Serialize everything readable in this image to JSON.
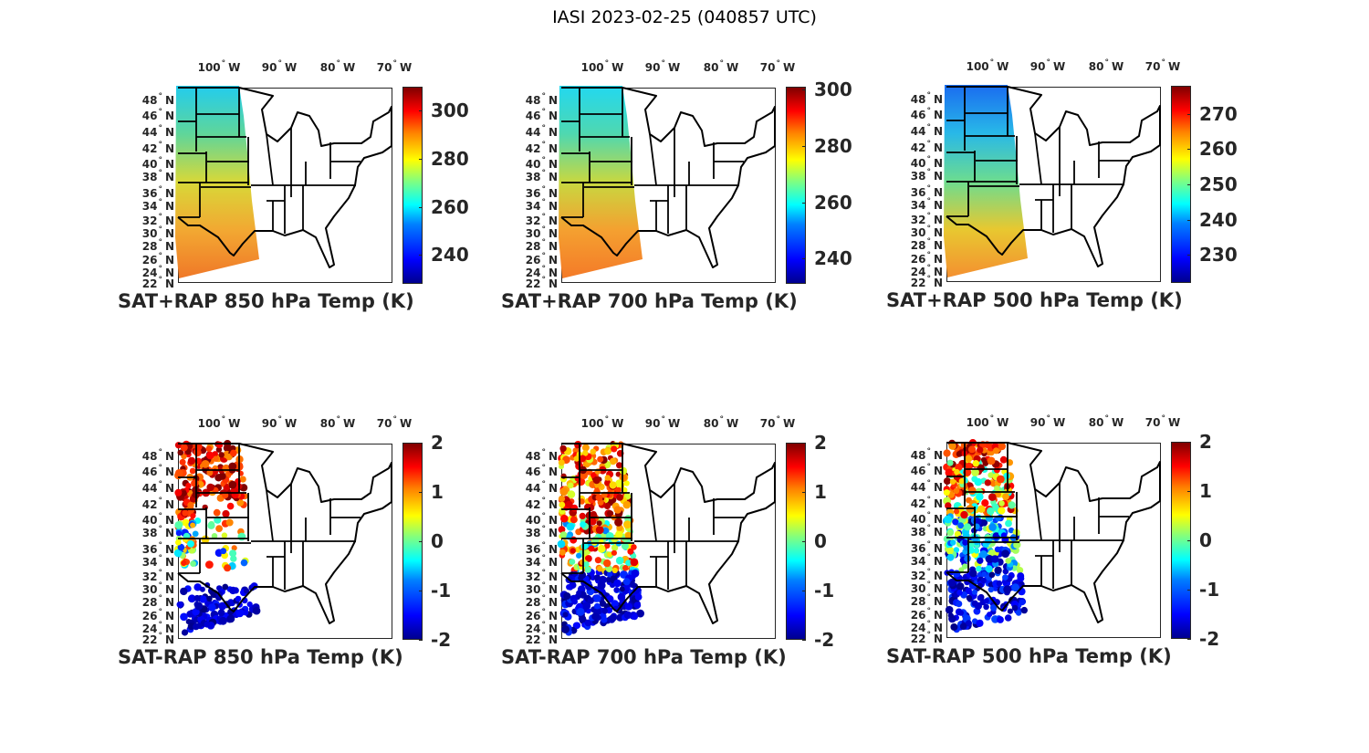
{
  "title": "IASI 2023-02-25 (040857 UTC)",
  "lon_labels": [
    "100",
    "90",
    "80",
    "70"
  ],
  "lon_suffix": "W",
  "lat_labels": [
    "48",
    "46",
    "44",
    "42",
    "40",
    "38",
    "36",
    "34",
    "32",
    "30",
    "28",
    "26",
    "24",
    "22"
  ],
  "lat_suffix": "N",
  "degree_symbol": "°",
  "colormap": "jet",
  "panels": [
    {
      "title": "SAT+RAP 850 hPa Temp (K)",
      "kind": "field",
      "range": [
        228,
        310
      ],
      "ticks": [
        "240",
        "260",
        "280",
        "300"
      ],
      "field_colors": [
        "#22ccee",
        "#5fd69a",
        "#d8d838",
        "#f2a832",
        "#f07828"
      ]
    },
    {
      "title": "SAT+RAP 700 hPa Temp (K)",
      "kind": "field",
      "range": [
        231,
        301
      ],
      "ticks": [
        "240",
        "260",
        "280",
        "300"
      ],
      "field_colors": [
        "#22d8f0",
        "#4fd8b0",
        "#c8d840",
        "#f4a030",
        "#f47a28"
      ]
    },
    {
      "title": "SAT+RAP 500 hPa Temp (K)",
      "kind": "field",
      "range": [
        222,
        278
      ],
      "ticks": [
        "230",
        "240",
        "250",
        "260",
        "270"
      ],
      "field_colors": [
        "#1a6cf0",
        "#28b8e8",
        "#6cdc90",
        "#e8c830",
        "#f49030"
      ]
    },
    {
      "title": "SAT-RAP 850 hPa Temp (K)",
      "kind": "difference",
      "range": [
        -2,
        2
      ],
      "ticks": [
        "-2",
        "-1",
        "0",
        "1",
        "2"
      ]
    },
    {
      "title": "SAT-RAP 700 hPa Temp (K)",
      "kind": "difference",
      "range": [
        -2,
        2
      ],
      "ticks": [
        "-2",
        "-1",
        "0",
        "1",
        "2"
      ]
    },
    {
      "title": "SAT-RAP 500 hPa Temp (K)",
      "kind": "difference",
      "range": [
        -2,
        2
      ],
      "ticks": [
        "-2",
        "-1",
        "0",
        "1",
        "2"
      ]
    }
  ]
}
